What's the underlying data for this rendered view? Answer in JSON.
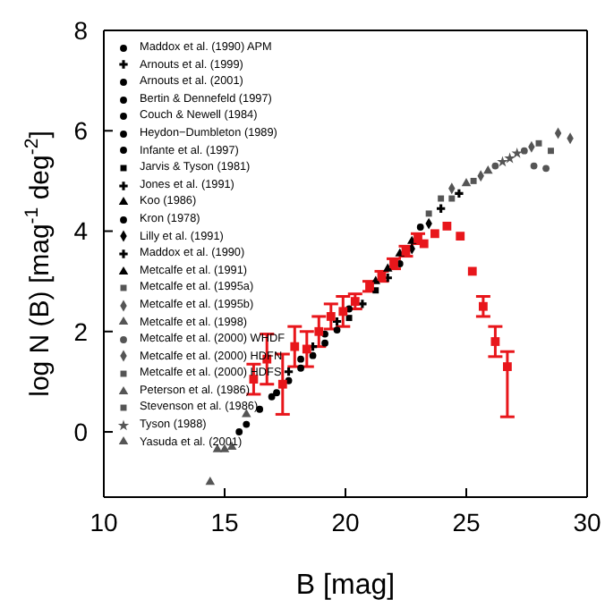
{
  "chart_data": {
    "type": "scatter",
    "xlabel": "B  [mag]",
    "ylabel": "log N (B)  [mag$^{-1}$ deg$^{-2}$]",
    "xlim": [
      10,
      30
    ],
    "xticks": [
      10,
      15,
      20,
      25,
      30
    ],
    "ylim": [
      -1.3,
      8
    ],
    "yticks": [
      0,
      2,
      4,
      6,
      8
    ],
    "legend": "top left",
    "series": [
      {
        "name": "Maddox et al. (1990) APM",
        "color": "#000000",
        "marker": "circle",
        "x": [
          15.6,
          16.45,
          17.65
        ],
        "values": [
          0.0,
          0.45,
          1.02
        ]
      },
      {
        "name": "Arnouts et al. (1999)",
        "color": "#000000",
        "marker": "cross",
        "x": [
          23.95,
          24.7
        ],
        "values": [
          4.45,
          4.75
        ]
      },
      {
        "name": "Arnouts et al. (2001)",
        "color": "#000000",
        "marker": "circle",
        "x": [
          22.25,
          23.1
        ],
        "values": [
          3.35,
          4.08
        ]
      },
      {
        "name": "Bertin & Dennefeld (1997)",
        "color": "#000000",
        "marker": "circle",
        "x": [
          15.9,
          17.15
        ],
        "values": [
          0.15,
          0.78
        ]
      },
      {
        "name": "Couch & Newell (1984)",
        "color": "#000000",
        "marker": "circle",
        "x": [
          18.15,
          19.15
        ],
        "values": [
          1.27,
          1.77
        ]
      },
      {
        "name": "Heydon−Dumbleton (1989)",
        "color": "#000000",
        "marker": "circle",
        "x": [
          18.65,
          19.65
        ],
        "values": [
          1.52,
          2.03
        ]
      },
      {
        "name": "Infante et al. (1997)",
        "color": "#000000",
        "marker": "circle",
        "x": [
          16.95,
          18.15
        ],
        "values": [
          0.7,
          1.45
        ]
      },
      {
        "name": "Jarvis & Tyson (1981)",
        "color": "#000000",
        "marker": "square",
        "x": [
          20.15,
          21.25
        ],
        "values": [
          2.27,
          2.82
        ]
      },
      {
        "name": "Jones et al. (1991)",
        "color": "#000000",
        "marker": "cross",
        "x": [
          20.7,
          21.75
        ],
        "values": [
          2.55,
          3.07
        ]
      },
      {
        "name": "Koo (1986)",
        "color": "#000000",
        "marker": "triangle",
        "x": [
          21.25,
          22.25
        ],
        "values": [
          3.0,
          3.55
        ]
      },
      {
        "name": "Kron (1978)",
        "color": "#000000",
        "marker": "circle",
        "x": [
          19.15,
          20.15
        ],
        "values": [
          1.95,
          2.45
        ]
      },
      {
        "name": "Lilly et al. (1991)",
        "color": "#000000",
        "marker": "diamond",
        "x": [
          22.75,
          23.45
        ],
        "values": [
          3.65,
          4.15
        ]
      },
      {
        "name": "Maddox et al. (1990)",
        "color": "#000000",
        "marker": "cross",
        "x": [
          17.65,
          18.65,
          19.65
        ],
        "values": [
          1.2,
          1.7,
          2.2
        ]
      },
      {
        "name": "Metcalfe et al. (1991)",
        "color": "#000000",
        "marker": "triangle",
        "x": [
          21.75,
          22.75
        ],
        "values": [
          3.25,
          3.8
        ]
      },
      {
        "name": "Metcalfe et al. (1995a)",
        "color": "#555555",
        "marker": "square",
        "x": [
          24.4,
          25.3
        ],
        "values": [
          4.65,
          5.0
        ]
      },
      {
        "name": "Metcalfe et al. (1995b)",
        "color": "#555555",
        "marker": "diamond",
        "x": [
          24.4,
          25.6
        ],
        "values": [
          4.85,
          5.1
        ]
      },
      {
        "name": "Metcalfe et al. (1998)",
        "color": "#555555",
        "marker": "triangle",
        "x": [
          25.0,
          25.9
        ],
        "values": [
          4.95,
          5.2
        ]
      },
      {
        "name": "Metcalfe et al. (2000) WHDF",
        "color": "#555555",
        "marker": "circle",
        "x": [
          26.2,
          27.4,
          27.8,
          28.3
        ],
        "values": [
          5.3,
          5.6,
          5.3,
          5.25
        ]
      },
      {
        "name": "Metcalfe et al. (2000) HDFN",
        "color": "#555555",
        "marker": "diamond",
        "x": [
          27.7,
          28.8,
          29.3
        ],
        "values": [
          5.68,
          5.95,
          5.85
        ]
      },
      {
        "name": "Metcalfe et al. (2000) HDFS",
        "color": "#555555",
        "marker": "square",
        "x": [
          28.0,
          28.5
        ],
        "values": [
          5.75,
          5.6
        ]
      },
      {
        "name": "Peterson et al. (1986)",
        "color": "#555555",
        "marker": "triangle",
        "x": [
          14.4,
          15.0
        ],
        "values": [
          -1.0,
          -0.35
        ]
      },
      {
        "name": "Stevenson et al. (1986)",
        "color": "#555555",
        "marker": "square",
        "x": [
          23.45,
          23.95
        ],
        "values": [
          4.35,
          4.65
        ]
      },
      {
        "name": "Tyson (1988)",
        "color": "#555555",
        "marker": "star",
        "x": [
          26.5,
          26.8,
          27.1
        ],
        "values": [
          5.38,
          5.45,
          5.55
        ]
      },
      {
        "name": "Yasuda et al. (2001)",
        "color": "#555555",
        "marker": "triangle",
        "x": [
          14.7,
          15.3,
          15.9
        ],
        "values": [
          -0.35,
          -0.3,
          0.35
        ]
      },
      {
        "color": "#e8161b",
        "marker": "square",
        "x": [
          16.2,
          16.75,
          17.4,
          17.9,
          18.4,
          18.9,
          19.4,
          19.9,
          20.4,
          21.0,
          21.5,
          22.0,
          22.5,
          23.0,
          23.25,
          23.7,
          24.2,
          24.75,
          25.25,
          25.7,
          26.2,
          26.7
        ],
        "values": [
          1.05,
          1.45,
          0.95,
          1.7,
          1.65,
          2.0,
          2.3,
          2.4,
          2.6,
          2.9,
          3.1,
          3.35,
          3.6,
          3.85,
          3.75,
          3.95,
          4.1,
          3.9,
          3.2,
          2.5,
          1.8,
          1.3
        ],
        "errors": [
          0.3,
          0.5,
          0.6,
          0.4,
          0.35,
          0.3,
          0.25,
          0.3,
          0.15,
          0.1,
          0.1,
          0.1,
          0.1,
          0.1,
          null,
          null,
          null,
          null,
          null,
          0.2,
          0.3,
          [
            0.3,
            1.6
          ]
        ]
      }
    ]
  }
}
